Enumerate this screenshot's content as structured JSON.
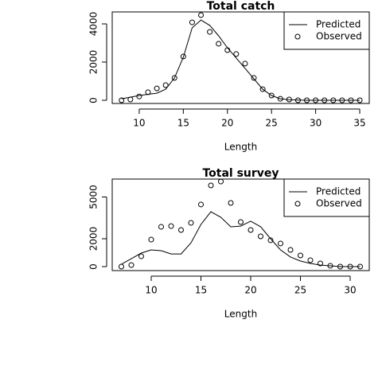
{
  "chart_data": [
    {
      "type": "line",
      "title": "Total catch",
      "x_label": "Length",
      "x": [
        8,
        9,
        10,
        11,
        12,
        13,
        14,
        15,
        16,
        17,
        18,
        19,
        20,
        21,
        22,
        23,
        24,
        25,
        26,
        27,
        28,
        29,
        30,
        31,
        32,
        33,
        34,
        35
      ],
      "series": [
        {
          "name": "Predicted",
          "color": "#000000",
          "style": "line",
          "values": [
            80,
            160,
            250,
            310,
            370,
            580,
            1170,
            2250,
            3790,
            4200,
            3920,
            3375,
            2750,
            2210,
            1670,
            1125,
            580,
            250,
            80,
            30,
            10,
            0,
            0,
            0,
            0,
            0,
            0,
            0
          ]
        },
        {
          "name": "Observed",
          "color": "#000000",
          "style": "points",
          "values": [
            0,
            40,
            200,
            420,
            620,
            790,
            1170,
            2290,
            4080,
            4460,
            3580,
            2960,
            2625,
            2420,
            1920,
            1170,
            580,
            250,
            80,
            40,
            0,
            0,
            0,
            0,
            0,
            0,
            0,
            0
          ]
        }
      ],
      "xlim": [
        6.94,
        36.08
      ],
      "xticks": [
        10,
        15,
        20,
        25,
        30,
        35
      ],
      "ylim": [
        -167,
        4625
      ],
      "yticks": [
        0,
        2000,
        4000
      ],
      "legend": "topright"
    },
    {
      "type": "line",
      "title": "Total survey",
      "x_label": "Length",
      "x": [
        7,
        8,
        9,
        10,
        11,
        12,
        13,
        14,
        15,
        16,
        17,
        18,
        19,
        20,
        21,
        22,
        23,
        24,
        25,
        26,
        27,
        28,
        29,
        30,
        31
      ],
      "series": [
        {
          "name": "Predicted",
          "color": "#000000",
          "style": "line",
          "values": [
            170,
            570,
            970,
            1200,
            1140,
            910,
            910,
            1710,
            3030,
            3940,
            3540,
            2860,
            2910,
            3260,
            2860,
            2000,
            1200,
            690,
            400,
            230,
            110,
            60,
            0,
            0,
            0
          ]
        },
        {
          "name": "Observed",
          "color": "#000000",
          "style": "points",
          "values": [
            0,
            110,
            740,
            1940,
            2860,
            2910,
            2630,
            3140,
            4460,
            5830,
            6110,
            4570,
            3200,
            2630,
            2170,
            1890,
            1660,
            1200,
            800,
            460,
            230,
            60,
            0,
            0,
            0
          ]
        }
      ],
      "xlim": [
        6.08,
        31.92
      ],
      "xticks": [
        10,
        15,
        20,
        25,
        30
      ],
      "ylim": [
        -286,
        6286
      ],
      "yticks": [
        0,
        2000,
        5000
      ],
      "legend": "topright"
    }
  ]
}
